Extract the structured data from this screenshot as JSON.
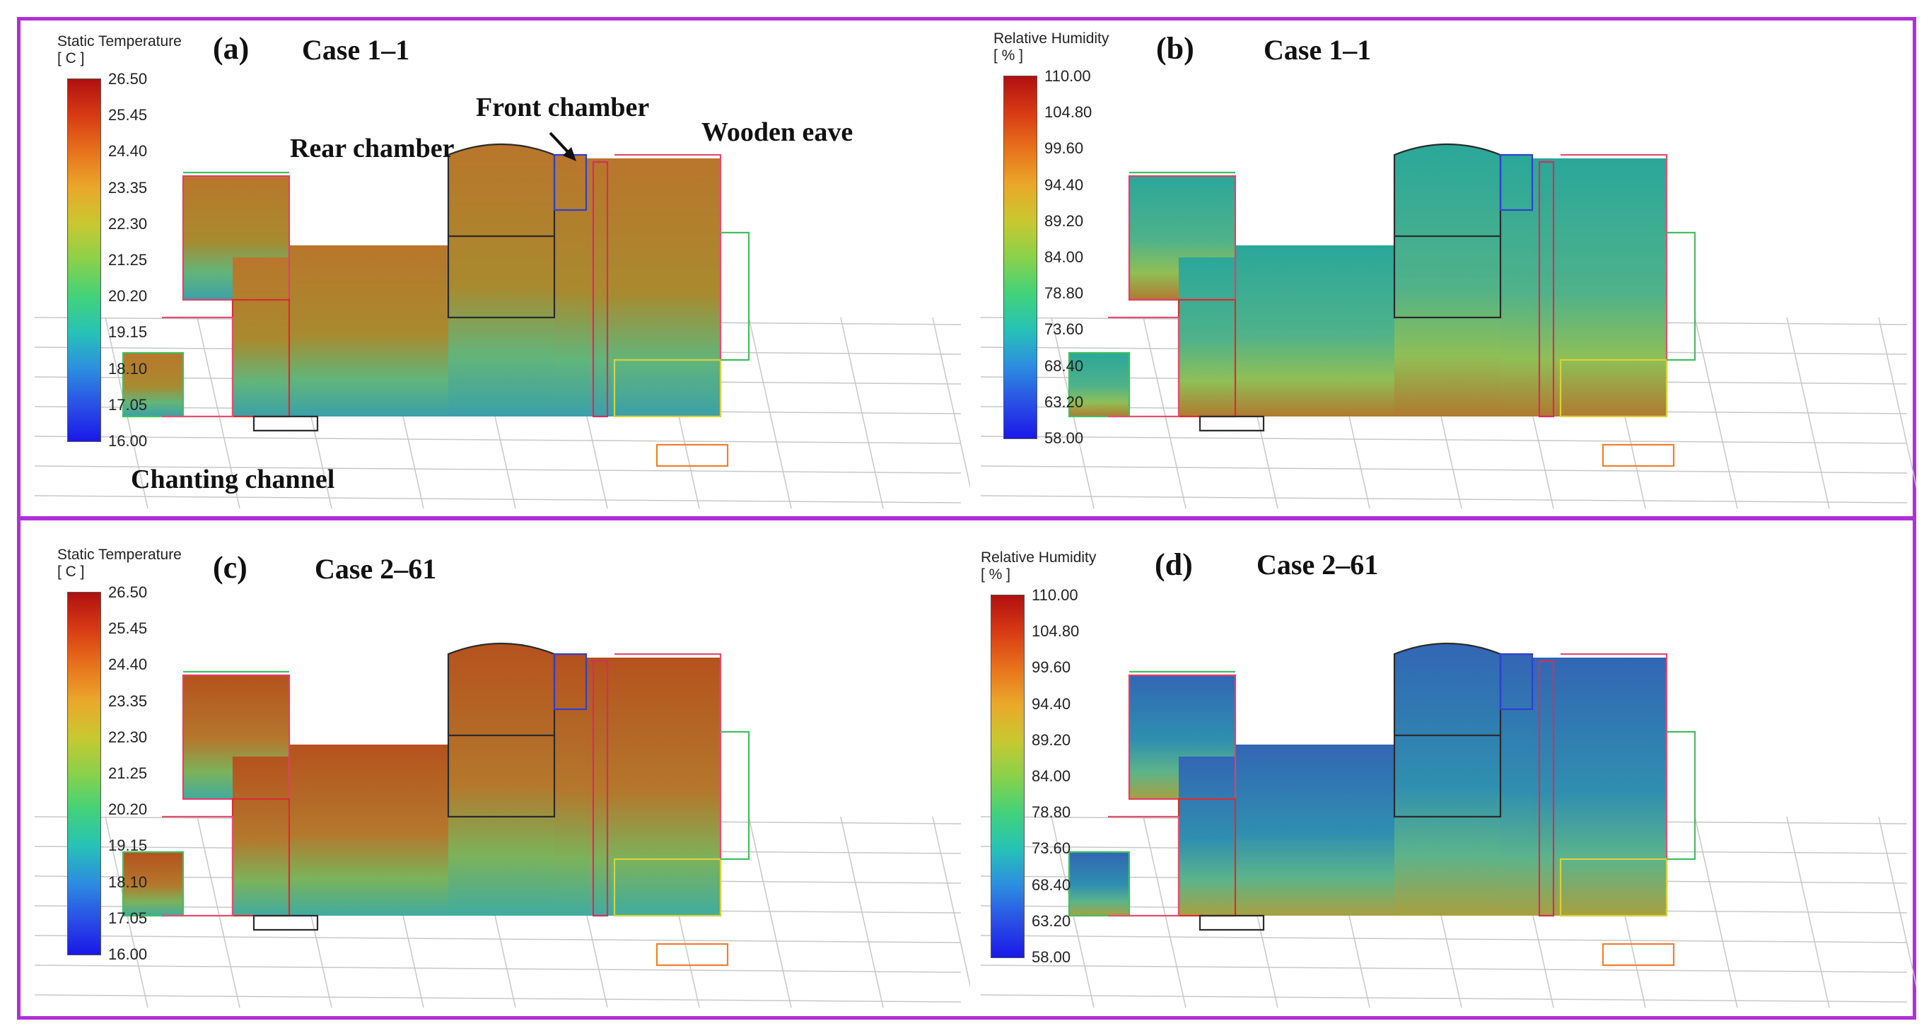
{
  "panels": [
    {
      "id": "a",
      "label": "(a)",
      "case": "Case 1–1",
      "legend": {
        "title": "Static Temperature",
        "unit": "[ C ]",
        "ticks": [
          "26.50",
          "25.45",
          "24.40",
          "23.35",
          "22.30",
          "21.25",
          "20.20",
          "19.15",
          "18.10",
          "17.05",
          "16.00"
        ]
      },
      "colors": {
        "upper": "#b9762c",
        "mid": "#a98a2e",
        "low": "#62b57a",
        "floor": "#3ba0a8"
      }
    },
    {
      "id": "b",
      "label": "(b)",
      "case": "Case 1–1",
      "legend": {
        "title": "Relative Humidity",
        "unit": "[ % ]",
        "ticks": [
          "110.00",
          "104.80",
          "99.60",
          "94.40",
          "89.20",
          "84.00",
          "78.80",
          "73.60",
          "68.40",
          "63.20",
          "58.00"
        ]
      },
      "colors": {
        "upper": "#2aa79a",
        "mid": "#4fb28a",
        "low": "#8fbf56",
        "floor": "#b07a30"
      }
    },
    {
      "id": "c",
      "label": "(c)",
      "case": "Case 2–61",
      "legend": {
        "title": "Static Temperature",
        "unit": "[ C ]",
        "ticks": [
          "26.50",
          "25.45",
          "24.40",
          "23.35",
          "22.30",
          "21.25",
          "20.20",
          "19.15",
          "18.10",
          "17.05",
          "16.00"
        ]
      },
      "colors": {
        "upper": "#b5521e",
        "mid": "#b4782c",
        "low": "#7cb25a",
        "floor": "#40aca0"
      }
    },
    {
      "id": "d",
      "label": "(d)",
      "case": "Case 2–61",
      "legend": {
        "title": "Relative Humidity",
        "unit": "[ % ]",
        "ticks": [
          "110.00",
          "104.80",
          "99.60",
          "94.40",
          "89.20",
          "84.00",
          "78.80",
          "73.60",
          "68.40",
          "63.20",
          "58.00"
        ]
      },
      "colors": {
        "upper": "#3266b4",
        "mid": "#2f8fb0",
        "low": "#5cb48a",
        "floor": "#a8a040"
      }
    }
  ],
  "annotations": {
    "rear_chamber": "Rear chamber",
    "front_chamber": "Front chamber",
    "wooden_eave": "Wooden eave",
    "chanting_channel": "Chanting channel"
  },
  "colorbar_gradient": [
    "#b01010",
    "#d83a14",
    "#e8721c",
    "#eaa82a",
    "#c8c830",
    "#8ad14a",
    "#42d27a",
    "#26c2b6",
    "#2c8ee0",
    "#2a50e6",
    "#1a18e8"
  ]
}
